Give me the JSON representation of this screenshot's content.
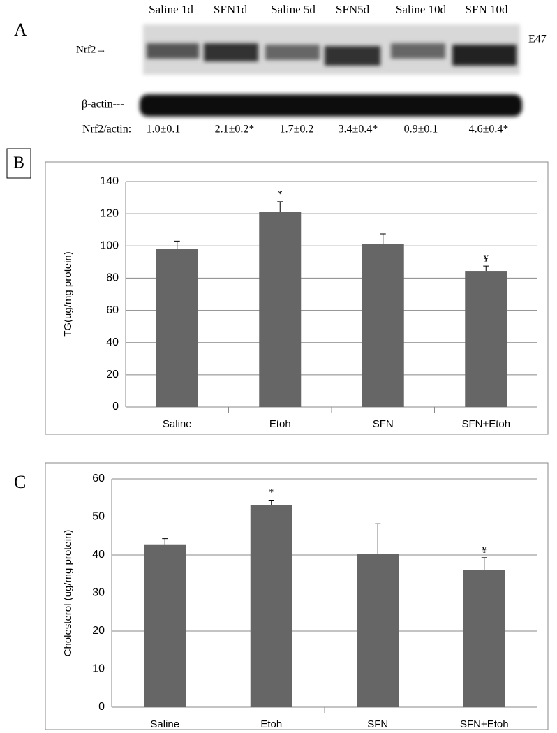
{
  "panel_labels": [
    "A",
    "B",
    "C"
  ],
  "blot": {
    "lanes": [
      "Saline 1d",
      "SFN1d",
      "Saline 5d",
      "SFN5d",
      "Saline 10d",
      "SFN 10d"
    ],
    "band_label": "Nrf2→",
    "cell_label": "E47",
    "loading_label": "β-actin---",
    "ratio_label": "Nrf2/actin:",
    "ratios": [
      "1.0±0.1",
      "2.1±0.2*",
      "1.7±0.2",
      "3.4±0.4*",
      "0.9±0.1",
      "4.6±0.4*"
    ]
  },
  "chart_data": [
    {
      "type": "bar",
      "ylabel": "TG(ug/mg protein)",
      "categories": [
        "Saline",
        "Etoh",
        "SFN",
        "SFN+Etoh"
      ],
      "values": [
        98,
        121,
        101,
        84.5
      ],
      "errors": [
        5,
        6.5,
        6.5,
        3
      ],
      "color": "#666666",
      "annotations": [
        {
          "category": "Etoh",
          "text": "*"
        },
        {
          "category": "SFN+Etoh",
          "text": "¥"
        }
      ],
      "ylim": [
        0,
        140
      ],
      "yticks": [
        0,
        20,
        40,
        60,
        80,
        100,
        120,
        140
      ],
      "grid": true
    },
    {
      "type": "bar",
      "ylabel": "Cholesterol (ug/mg protein)",
      "categories": [
        "Saline",
        "Etoh",
        "SFN",
        "SFN+Etoh"
      ],
      "values": [
        42.8,
        53.2,
        40.2,
        36
      ],
      "errors": [
        1.5,
        1.2,
        8,
        3.3
      ],
      "color": "#666666",
      "annotations": [
        {
          "category": "Etoh",
          "text": "*"
        },
        {
          "category": "SFN+Etoh",
          "text": "¥"
        }
      ],
      "ylim": [
        0,
        60
      ],
      "yticks": [
        0,
        10,
        20,
        30,
        40,
        50,
        60
      ],
      "grid": true
    }
  ]
}
